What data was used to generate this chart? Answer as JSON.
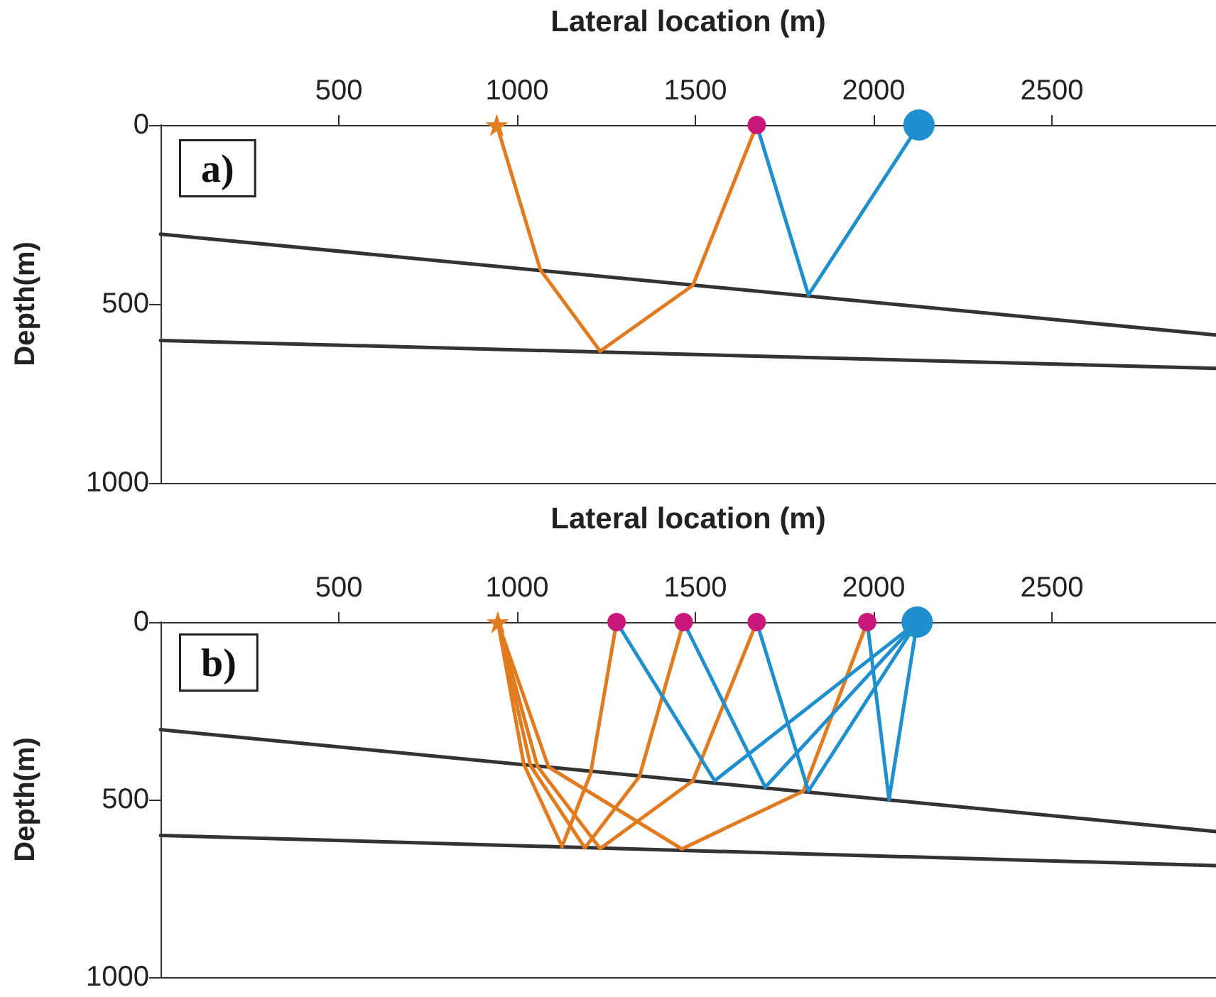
{
  "chart_data": [
    {
      "type": "line",
      "xlabel": "Lateral location (m)",
      "ylabel": "Depth(m)",
      "annotations": [
        "a)"
      ],
      "xlim": [
        0,
        2960
      ],
      "xticks": [
        500,
        1000,
        1500,
        2000,
        2500
      ],
      "ylim": [
        1000,
        0
      ],
      "yticks": [
        0,
        500,
        1000
      ],
      "grid": false,
      "line_style": "solid",
      "series": [
        {
          "color": "#333333",
          "x": [
            0,
            2960
          ],
          "values": [
            305,
            587
          ]
        },
        {
          "color": "#333333",
          "x": [
            0,
            2960
          ],
          "values": [
            602,
            680
          ]
        },
        {
          "color": "#e07b20",
          "x": [
            943,
            1065,
            1233,
            1493,
            1672
          ],
          "values": [
            0,
            404,
            632,
            448,
            0
          ]
        },
        {
          "color": "#1f8fce",
          "x": [
            1672,
            1817,
            2127
          ],
          "values": [
            0,
            475,
            0
          ]
        },
        {
          "type": "scatter",
          "marker": "star",
          "color": "#e07b20",
          "x": [
            943
          ],
          "values": [
            0
          ]
        },
        {
          "type": "scatter",
          "marker": "circle",
          "color": "#c8197a",
          "x": [
            1672
          ],
          "values": [
            0
          ],
          "sizes": [
            0.35
          ]
        },
        {
          "type": "scatter",
          "marker": "circle",
          "color": "#1f8fce",
          "x": [
            2127
          ],
          "values": [
            0
          ],
          "sizes": [
            1
          ]
        }
      ]
    },
    {
      "type": "line",
      "xlabel": "Lateral location (m)",
      "ylabel": "Depth(m)",
      "annotations": [
        "b)"
      ],
      "xlim": [
        0,
        2960
      ],
      "xticks": [
        500,
        1000,
        1500,
        2000,
        2500
      ],
      "ylim": [
        1000,
        0
      ],
      "yticks": [
        0,
        500,
        1000
      ],
      "grid": false,
      "line_style": "solid",
      "series": [
        {
          "color": "#333333",
          "x": [
            0,
            2960
          ],
          "values": [
            303,
            590
          ]
        },
        {
          "color": "#333333",
          "x": [
            0,
            2960
          ],
          "values": [
            601,
            686
          ]
        },
        {
          "color": "#e07b20",
          "x": [
            946,
            1019,
            1126,
            1206,
            1279
          ],
          "values": [
            0,
            401,
            632,
            427,
            0
          ]
        },
        {
          "color": "#e07b20",
          "x": [
            946,
            1038,
            1190,
            1343,
            1467
          ],
          "values": [
            0,
            405,
            636,
            435,
            0
          ]
        },
        {
          "color": "#e07b20",
          "x": [
            946,
            1057,
            1233,
            1493,
            1672
          ],
          "values": [
            0,
            406,
            638,
            447,
            0
          ]
        },
        {
          "color": "#e07b20",
          "x": [
            946,
            1088,
            1462,
            1803,
            1982
          ],
          "values": [
            0,
            408,
            639,
            476,
            0
          ]
        },
        {
          "color": "#1f8fce",
          "x": [
            1279,
            1554,
            2122
          ],
          "values": [
            0,
            447,
            0
          ]
        },
        {
          "color": "#1f8fce",
          "x": [
            1467,
            1696,
            2122
          ],
          "values": [
            0,
            465,
            0
          ]
        },
        {
          "color": "#1f8fce",
          "x": [
            1672,
            1817,
            2122
          ],
          "values": [
            0,
            476,
            0
          ]
        },
        {
          "color": "#1f8fce",
          "x": [
            1982,
            2043,
            2122
          ],
          "values": [
            0,
            500,
            0
          ]
        },
        {
          "type": "scatter",
          "marker": "star",
          "color": "#e07b20",
          "x": [
            946
          ],
          "values": [
            0
          ]
        },
        {
          "type": "scatter",
          "marker": "circle",
          "color": "#c8197a",
          "x": [
            1279,
            1467,
            1672,
            1982
          ],
          "values": [
            0,
            0,
            0,
            0
          ],
          "sizes": [
            0.35,
            0.35,
            0.35,
            0.35
          ]
        },
        {
          "type": "scatter",
          "marker": "circle",
          "color": "#1f8fce",
          "x": [
            2122
          ],
          "values": [
            0
          ],
          "sizes": [
            1
          ]
        }
      ]
    }
  ]
}
